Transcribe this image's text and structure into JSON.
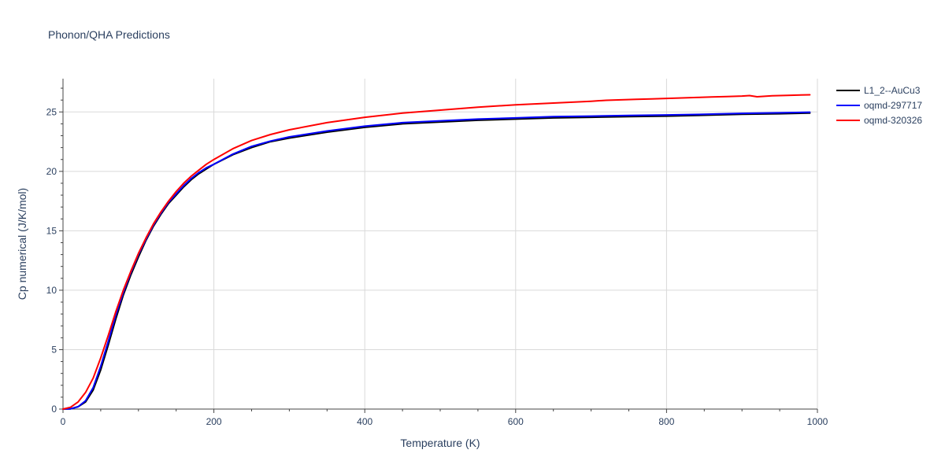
{
  "chart_data": {
    "type": "line",
    "title": "Phonon/QHA Predictions",
    "xlabel": "Temperature (K)",
    "ylabel": "Cp numerical (J/K/mol)",
    "xlim": [
      0,
      1000
    ],
    "ylim": [
      0,
      27.8
    ],
    "xticks": [
      0,
      200,
      400,
      600,
      800,
      1000
    ],
    "yticks": [
      0,
      5,
      10,
      15,
      20,
      25
    ],
    "grid": true,
    "legend_position": "top-right",
    "series": [
      {
        "name": "L1_2--AuCu3",
        "color": "#000000",
        "x": [
          0,
          10,
          20,
          30,
          40,
          50,
          60,
          70,
          80,
          90,
          100,
          110,
          120,
          130,
          140,
          150,
          160,
          170,
          180,
          190,
          200,
          225,
          250,
          275,
          300,
          350,
          400,
          450,
          500,
          550,
          600,
          650,
          700,
          750,
          800,
          850,
          900,
          950,
          990
        ],
        "y": [
          0,
          0.02,
          0.2,
          0.6,
          1.6,
          3.3,
          5.4,
          7.6,
          9.6,
          11.3,
          12.8,
          14.2,
          15.4,
          16.4,
          17.3,
          18.0,
          18.7,
          19.3,
          19.8,
          20.2,
          20.6,
          21.4,
          22.0,
          22.5,
          22.8,
          23.3,
          23.7,
          24.0,
          24.15,
          24.3,
          24.4,
          24.5,
          24.55,
          24.6,
          24.65,
          24.72,
          24.8,
          24.85,
          24.9
        ]
      },
      {
        "name": "oqmd-297717",
        "color": "#0000ff",
        "x": [
          0,
          10,
          20,
          30,
          40,
          50,
          60,
          70,
          80,
          90,
          100,
          110,
          120,
          130,
          140,
          150,
          160,
          170,
          180,
          190,
          200,
          225,
          250,
          275,
          300,
          350,
          400,
          450,
          500,
          550,
          600,
          650,
          700,
          750,
          800,
          850,
          900,
          950,
          990
        ],
        "y": [
          0,
          0.02,
          0.2,
          0.7,
          1.8,
          3.6,
          5.7,
          7.9,
          9.8,
          11.5,
          13.0,
          14.3,
          15.5,
          16.5,
          17.4,
          18.1,
          18.8,
          19.4,
          19.9,
          20.3,
          20.6,
          21.45,
          22.1,
          22.55,
          22.9,
          23.4,
          23.8,
          24.1,
          24.25,
          24.4,
          24.5,
          24.6,
          24.65,
          24.7,
          24.75,
          24.8,
          24.88,
          24.93,
          24.98
        ]
      },
      {
        "name": "oqmd-320326",
        "color": "#ff0000",
        "x": [
          0,
          10,
          20,
          30,
          40,
          50,
          60,
          70,
          80,
          90,
          100,
          110,
          120,
          130,
          140,
          150,
          160,
          170,
          180,
          190,
          200,
          225,
          250,
          275,
          300,
          350,
          400,
          450,
          500,
          550,
          600,
          650,
          700,
          720,
          740,
          760,
          780,
          800,
          820,
          840,
          860,
          880,
          900,
          910,
          920,
          940,
          960,
          990
        ],
        "y": [
          0,
          0.15,
          0.6,
          1.4,
          2.6,
          4.3,
          6.2,
          8.2,
          10.0,
          11.6,
          13.1,
          14.4,
          15.6,
          16.6,
          17.5,
          18.3,
          19.0,
          19.6,
          20.1,
          20.6,
          21.0,
          21.9,
          22.6,
          23.1,
          23.5,
          24.1,
          24.55,
          24.9,
          25.15,
          25.4,
          25.6,
          25.75,
          25.9,
          25.98,
          26.02,
          26.06,
          26.1,
          26.14,
          26.18,
          26.22,
          26.26,
          26.3,
          26.34,
          26.38,
          26.28,
          26.36,
          26.4,
          26.44
        ]
      }
    ]
  }
}
